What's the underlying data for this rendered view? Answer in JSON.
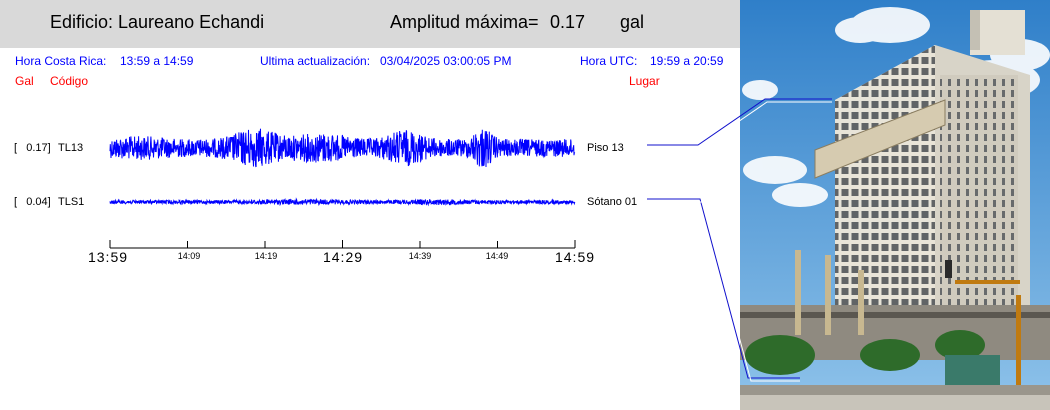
{
  "header": {
    "building_label": "Edificio: Laureano Echandi",
    "amplitude_label": "Amplitud máxima=",
    "amplitude_value": "0.17",
    "amplitude_unit": "gal"
  },
  "info": {
    "cr_time_label": "Hora Costa Rica:",
    "cr_time_range": "13:59 a 14:59",
    "update_label": "Ultima actualización:",
    "update_value": "03/04/2025 03:00:05 PM",
    "utc_label": "Hora UTC:",
    "utc_range": "19:59 a 20:59"
  },
  "columns": {
    "gal": "Gal",
    "code": "Código",
    "place": "Lugar"
  },
  "channels": [
    {
      "amp_text": "[   0.17]",
      "code": "TL13",
      "place": "Piso 13",
      "amplitude": 0.17
    },
    {
      "amp_text": "[   0.04]",
      "code": "TLS1",
      "place": "Sótano 01",
      "amplitude": 0.04
    }
  ],
  "time_axis": {
    "major_labels": [
      "13:59",
      "14:29",
      "14:59"
    ],
    "minor_labels": [
      "14:09",
      "14:19",
      "14:39",
      "14:49"
    ]
  },
  "colors": {
    "trace": "#0000ff",
    "info_text": "#0000ff",
    "column_header": "#ff0000",
    "header_bg": "#d9d9d9"
  }
}
